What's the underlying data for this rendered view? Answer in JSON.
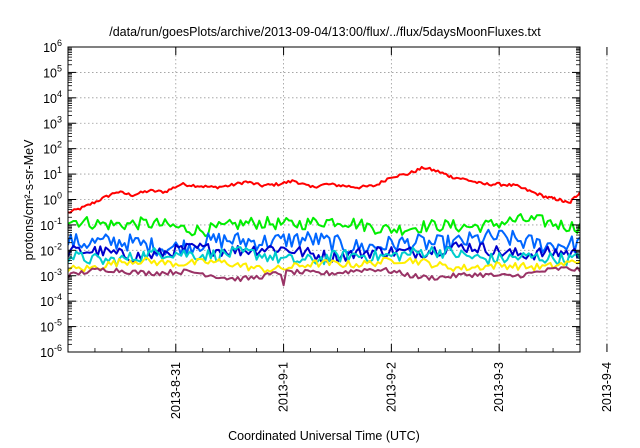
{
  "chart_data": {
    "type": "line",
    "title": "/data/run/goesPlots/archive/2013-09-04/13:00/flux/../flux/5daysMoonFluxes.txt",
    "xlabel": "Coordinated Universal Time (UTC)",
    "ylabel": "protons/cm²-s-sr-MeV",
    "y_scale": "log",
    "ylim_exponents": [
      -6,
      6
    ],
    "y_tick_labels": [
      "10^-6",
      "10^-5",
      "10^-4",
      "10^-3",
      "10^-2",
      "10^-1",
      "10^0",
      "10^1",
      "10^2",
      "10^3",
      "10^4",
      "10^5",
      "10^6"
    ],
    "x_ticks": [
      "2013-8-31",
      "2013-9-1",
      "2013-9-2",
      "2013-9-3",
      "2013-9-4"
    ],
    "xlim_days": [
      0,
      4.75
    ],
    "x_tick_positions_days": [
      1,
      2,
      3,
      4,
      5
    ],
    "grid": true,
    "legend": "none",
    "series": [
      {
        "color": "#ff0000",
        "x": [
          0,
          0.15,
          0.3,
          0.45,
          0.6,
          0.75,
          0.9,
          1.05,
          1.2,
          1.35,
          1.5,
          1.65,
          1.8,
          1.95,
          2.1,
          2.25,
          2.4,
          2.55,
          2.7,
          2.85,
          3.0,
          3.15,
          3.3,
          3.45,
          3.55,
          3.7,
          3.85,
          4.0,
          4.15,
          4.3,
          4.45,
          4.55,
          4.65,
          4.75
        ],
        "y": [
          0.3,
          0.5,
          1.0,
          2.0,
          1.5,
          2.2,
          2.0,
          4.0,
          3.5,
          3.0,
          3.5,
          5.0,
          3.5,
          4.0,
          5.5,
          3.0,
          4.0,
          3.5,
          3.0,
          3.5,
          8.0,
          10.0,
          18.0,
          12.0,
          8.0,
          6.0,
          4.0,
          4.0,
          3.5,
          2.0,
          1.2,
          1.0,
          0.7,
          2.0
        ]
      },
      {
        "color": "#00ee00",
        "base": 0.1,
        "variation": 0.5
      },
      {
        "color": "#0066ff",
        "base": 0.02,
        "variation": 0.7
      },
      {
        "color": "#0000cc",
        "base": 0.009,
        "variation": 0.5
      },
      {
        "color": "#00cccc",
        "base": 0.006,
        "variation": 0.5
      },
      {
        "color": "#ffee00",
        "base": 0.0028,
        "variation": 0.3
      },
      {
        "color": "#993366",
        "base": 0.0012,
        "variation": 0.2
      }
    ]
  }
}
